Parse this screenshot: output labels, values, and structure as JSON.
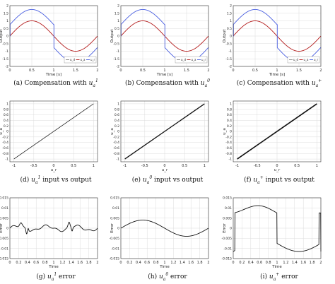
{
  "captions": [
    {
      "pre": "(a) Compensation with ",
      "base": "u",
      "sub": "a",
      "sup": "1",
      "post": ""
    },
    {
      "pre": "(b) Compensation with ",
      "base": "u",
      "sub": "a",
      "sup": "0",
      "post": ""
    },
    {
      "pre": "(c) Compensation with ",
      "base": "u",
      "sub": "a",
      "sup": "+",
      "post": ""
    },
    {
      "pre": "(d) ",
      "base": "u",
      "sub": "a",
      "sup": "1",
      "post": " input vs output"
    },
    {
      "pre": "(e) ",
      "base": "u",
      "sub": "a",
      "sup": "0",
      "post": " input vs output"
    },
    {
      "pre": "(f) ",
      "base": "u",
      "sub": "a",
      "sup": "+",
      "post": " input vs output"
    },
    {
      "pre": "(g) ",
      "base": "u",
      "sub": "a",
      "sup": "1",
      "post": " error"
    },
    {
      "pre": "(h) ",
      "base": "u",
      "sub": "a",
      "sup": "0",
      "post": " error"
    },
    {
      "pre": "(i) ",
      "base": "u",
      "sub": "a",
      "sup": "+",
      "post": " error"
    }
  ],
  "colors": {
    "u_r": "#4a5fe0",
    "u_a": "#b31b1b",
    "u_d": "#8a8a8a",
    "line": "#111111"
  },
  "chart_data": [
    {
      "type": "line",
      "panel": "a",
      "xlabel": "Time [s]",
      "ylabel": "Output",
      "xlim": [
        0,
        2
      ],
      "ylim": [
        -2,
        2
      ],
      "xticks": [
        "0",
        "0.5",
        "1",
        "1.5",
        "2"
      ],
      "yticks": [
        "-2",
        "-1.5",
        "-1",
        "-0.5",
        "0",
        "0.5",
        "1",
        "1.5",
        "2"
      ],
      "legend_location": "bottom-right",
      "legend": [
        "u_d",
        "u_a",
        "u_r"
      ],
      "series": [
        {
          "name": "u_a",
          "type": "sine",
          "amp": 1,
          "freq": 0.5,
          "color_key": "u_a"
        },
        {
          "name": "u_r",
          "type": "comp",
          "amp": 1.75,
          "freq": 0.5,
          "offset": 0.75,
          "color_key": "u_r"
        }
      ]
    },
    {
      "type": "line",
      "panel": "b",
      "xlabel": "Time [s]",
      "ylabel": "Output",
      "xlim": [
        0,
        2
      ],
      "ylim": [
        -2,
        2
      ],
      "xticks": [
        "0",
        "0.5",
        "1",
        "1.5",
        "2"
      ],
      "yticks": [
        "-2",
        "-1.5",
        "-1",
        "-0.5",
        "0",
        "0.5",
        "1",
        "1.5",
        "2"
      ],
      "legend_location": "bottom-right",
      "legend": [
        "u_d",
        "u_a",
        "u_r"
      ],
      "series": [
        {
          "name": "u_a",
          "type": "sine",
          "amp": 1,
          "freq": 0.5,
          "color_key": "u_a"
        },
        {
          "name": "u_r",
          "type": "comp",
          "amp": 1.75,
          "freq": 0.5,
          "offset": 0.75,
          "color_key": "u_r"
        }
      ]
    },
    {
      "type": "line",
      "panel": "c",
      "xlabel": "Time [s]",
      "ylabel": "Output",
      "xlim": [
        0,
        2
      ],
      "ylim": [
        -2,
        2
      ],
      "xticks": [
        "0",
        "0.5",
        "1",
        "1.5",
        "2"
      ],
      "yticks": [
        "-2",
        "-1.5",
        "-1",
        "-0.5",
        "0",
        "0.5",
        "1",
        "1.5",
        "2"
      ],
      "legend_location": "bottom-right",
      "legend": [
        "u_d",
        "u_a",
        "u_r"
      ],
      "series": [
        {
          "name": "u_a",
          "type": "sine",
          "amp": 1,
          "freq": 0.5,
          "color_key": "u_a"
        },
        {
          "name": "u_r",
          "type": "comp",
          "amp": 1.75,
          "freq": 0.5,
          "offset": 0.75,
          "color_key": "u_r"
        }
      ]
    },
    {
      "type": "line",
      "panel": "d",
      "xlabel": "u_r",
      "ylabel": "u_a",
      "xlim": [
        -1.1,
        1.1
      ],
      "ylim": [
        -1.1,
        1.1
      ],
      "xticks": [
        "-1",
        "-0.5",
        "0",
        "0.5",
        "1"
      ],
      "yticks": [
        "-1",
        "-0.8",
        "-0.6",
        "-0.4",
        "-0.2",
        "0",
        "0.2",
        "0.4",
        "0.6",
        "0.8",
        "1"
      ],
      "series": [
        {
          "type": "identity",
          "points": [
            [
              -1,
              -1
            ],
            [
              1,
              1
            ]
          ],
          "color_key": "line",
          "width": 0.7
        }
      ]
    },
    {
      "type": "line",
      "panel": "e",
      "xlabel": "u_r",
      "ylabel": "u_a",
      "xlim": [
        -1.1,
        1.1
      ],
      "ylim": [
        -1.1,
        1.1
      ],
      "xticks": [
        "-1",
        "-0.5",
        "0",
        "0.5",
        "1"
      ],
      "yticks": [
        "-1",
        "-0.8",
        "-0.6",
        "-0.4",
        "-0.2",
        "0",
        "0.2",
        "0.4",
        "0.6",
        "0.8",
        "1"
      ],
      "series": [
        {
          "type": "identity",
          "points": [
            [
              -1,
              -1
            ],
            [
              1,
              1
            ]
          ],
          "color_key": "line",
          "width": 1.3
        }
      ]
    },
    {
      "type": "line",
      "panel": "f",
      "xlabel": "u_r",
      "ylabel": "u_a",
      "xlim": [
        -1.1,
        1.1
      ],
      "ylim": [
        -1.1,
        1.1
      ],
      "xticks": [
        "-1",
        "-0.5",
        "0",
        "0.5",
        "1"
      ],
      "yticks": [
        "-1",
        "-0.8",
        "-0.6",
        "-0.4",
        "-0.2",
        "0",
        "0.2",
        "0.4",
        "0.6",
        "0.8",
        "1"
      ],
      "series": [
        {
          "type": "identity",
          "points": [
            [
              -1,
              -1
            ],
            [
              1,
              1
            ]
          ],
          "color_key": "line",
          "width": 1.6
        }
      ]
    },
    {
      "type": "line",
      "panel": "g",
      "xlabel": "Time",
      "ylabel": "Error",
      "xlim": [
        0,
        2
      ],
      "ylim": [
        -0.015,
        0.015
      ],
      "xticks": [
        "0",
        "0.2",
        "0.4",
        "0.6",
        "0.8",
        "1",
        "1.2",
        "1.4",
        "1.6",
        "1.8",
        "2"
      ],
      "yticks": [
        "-0.015",
        "-0.01",
        "-0.005",
        "0",
        "0.005",
        "0.01",
        "0.015"
      ],
      "series": [
        {
          "type": "err_g",
          "color_key": "line"
        }
      ]
    },
    {
      "type": "line",
      "panel": "h",
      "xlabel": "Time",
      "ylabel": "Error",
      "xlim": [
        0,
        2
      ],
      "ylim": [
        -0.015,
        0.015
      ],
      "xticks": [
        "0",
        "0.2",
        "0.4",
        "0.6",
        "0.8",
        "1",
        "1.2",
        "1.4",
        "1.6",
        "1.8",
        "2"
      ],
      "yticks": [
        "-0.015",
        "-0.01",
        "-0.005",
        "0",
        "0.005",
        "0.01",
        "0.015"
      ],
      "series": [
        {
          "type": "sine",
          "amp": 0.004,
          "freq": 0.5,
          "color_key": "line"
        }
      ]
    },
    {
      "type": "line",
      "panel": "i",
      "xlabel": "Time",
      "ylabel": "Error",
      "xlim": [
        0,
        2
      ],
      "ylim": [
        -0.015,
        0.015
      ],
      "xticks": [
        "0",
        "0.2",
        "0.4",
        "0.6",
        "0.8",
        "1",
        "1.2",
        "1.4",
        "1.6",
        "1.8",
        "2"
      ],
      "yticks": [
        "-0.015",
        "-0.01",
        "-0.005",
        "0",
        "0.005",
        "0.01",
        "0.015"
      ],
      "series": [
        {
          "type": "err_i",
          "color_key": "line"
        }
      ]
    }
  ]
}
